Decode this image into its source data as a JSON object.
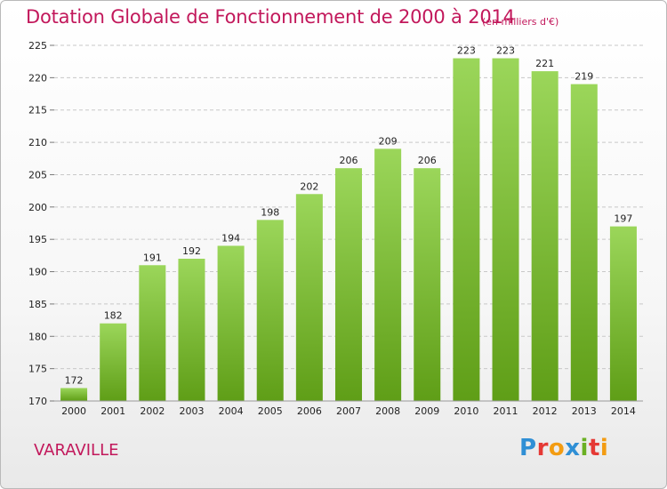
{
  "title": "Dotation Globale de Fonctionnement de 2000 à 2014",
  "subtitle": "(en milliers d'€)",
  "commune": "VARAVILLE",
  "logo": {
    "text": "Proxiti",
    "letters": [
      {
        "ch": "P",
        "color": "#2f8fd5"
      },
      {
        "ch": "r",
        "color": "#e53935"
      },
      {
        "ch": "o",
        "color": "#f39c12"
      },
      {
        "ch": "x",
        "color": "#2f8fd5"
      },
      {
        "ch": "i",
        "color": "#6ab023"
      },
      {
        "ch": "t",
        "color": "#e53935"
      },
      {
        "ch": "i",
        "color": "#f39c12"
      }
    ]
  },
  "colors": {
    "title": "#c2185b",
    "bar_top": "#9bd65a",
    "bar_bottom": "#5f9e17",
    "grid": "#c8c8c8",
    "axis_text": "#222222"
  },
  "chart_data": {
    "type": "bar",
    "title": "Dotation Globale de Fonctionnement de 2000 à 2014",
    "subtitle": "(en milliers d'€)",
    "xlabel": "",
    "ylabel": "",
    "categories": [
      "2000",
      "2001",
      "2002",
      "2003",
      "2004",
      "2005",
      "2006",
      "2007",
      "2008",
      "2009",
      "2010",
      "2011",
      "2012",
      "2013",
      "2014"
    ],
    "values": [
      172,
      182,
      191,
      192,
      194,
      198,
      202,
      206,
      209,
      206,
      223,
      223,
      221,
      219,
      197
    ],
    "ylim": [
      170,
      225
    ],
    "yticks": [
      170,
      175,
      180,
      185,
      190,
      195,
      200,
      205,
      210,
      215,
      220,
      225
    ],
    "grid": true,
    "data_labels": true
  }
}
